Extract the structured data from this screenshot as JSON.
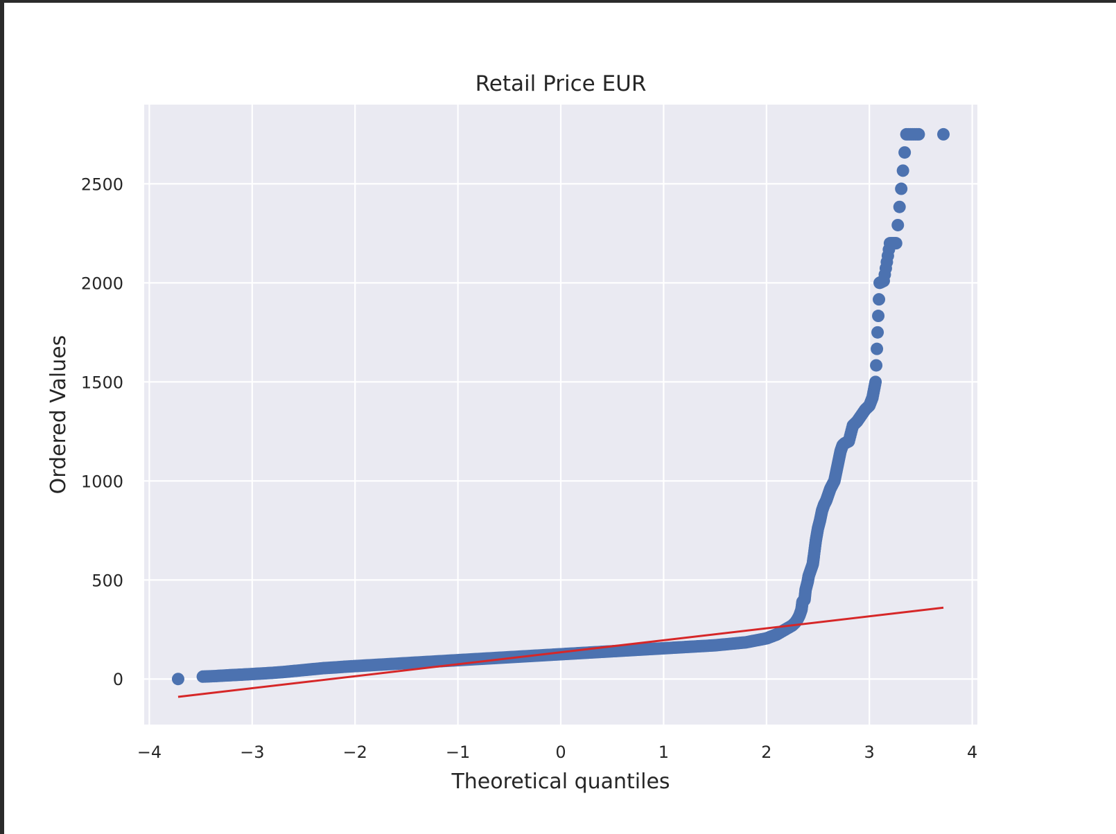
{
  "chart_data": {
    "type": "scatter",
    "title": "Retail Price EUR",
    "xlabel": "Theoretical quantiles",
    "ylabel": "Ordered Values",
    "xlim": [
      -4.05,
      4.05
    ],
    "ylim": [
      -230,
      2900
    ],
    "x_ticks": [
      -4,
      -3,
      -2,
      -1,
      0,
      1,
      2,
      3,
      4
    ],
    "x_tick_labels": [
      "−4",
      "−3",
      "−2",
      "−1",
      "0",
      "1",
      "2",
      "3",
      "4"
    ],
    "y_ticks": [
      0,
      500,
      1000,
      1500,
      2000,
      2500
    ],
    "y_tick_labels": [
      "0",
      "500",
      "1000",
      "1500",
      "2000",
      "2500"
    ],
    "grid": true,
    "legend": "none",
    "colors": {
      "points": "#4c72b0",
      "fit_line": "#d62728",
      "plot_background": "#eaeaf2",
      "grid": "#ffffff"
    },
    "series": [
      {
        "kind": "points",
        "x": [
          -3.72,
          -3.48,
          -3.35,
          -3.25,
          -3.18,
          -3.1,
          -3.0,
          -2.9,
          -2.8,
          -2.7,
          -2.6,
          -2.5,
          -2.4,
          -2.3,
          -2.2,
          -2.1,
          -2.0,
          -1.9,
          -1.8,
          -1.7,
          -1.6,
          -1.5,
          -1.4,
          -1.3,
          -1.2,
          -1.1,
          -1.0,
          -0.9,
          -0.8,
          -0.7,
          -0.6,
          -0.5,
          -0.4,
          -0.3,
          -0.2,
          -0.1,
          0.0,
          0.1,
          0.2,
          0.3,
          0.4,
          0.5,
          0.6,
          0.7,
          0.8,
          0.9,
          1.0,
          1.1,
          1.2,
          1.3,
          1.4,
          1.5,
          1.6,
          1.7,
          1.8,
          1.9,
          2.0,
          2.05,
          2.1,
          2.15,
          2.2,
          2.25,
          2.28,
          2.3,
          2.32,
          2.34,
          2.35,
          2.37,
          2.38,
          2.4,
          2.41,
          2.43,
          2.45,
          2.46,
          2.48,
          2.5,
          2.52,
          2.54,
          2.56,
          2.58,
          2.6,
          2.62,
          2.64,
          2.66,
          2.68,
          2.7,
          2.72,
          2.74,
          2.76,
          2.8,
          2.84,
          2.88,
          2.92,
          2.96,
          3.0,
          3.03,
          3.06,
          3.1,
          3.14,
          3.2,
          3.26,
          3.36,
          3.48,
          3.72
        ],
        "y": [
          0,
          12,
          15,
          18,
          20,
          22,
          25,
          28,
          31,
          35,
          40,
          45,
          50,
          55,
          58,
          62,
          65,
          68,
          71,
          74,
          77,
          80,
          83,
          86,
          89,
          92,
          95,
          98,
          101,
          104,
          107,
          110,
          113,
          116,
          119,
          122,
          125,
          128,
          131,
          134,
          137,
          140,
          143,
          146,
          149,
          152,
          155,
          158,
          161,
          164,
          167,
          170,
          175,
          180,
          185,
          195,
          205,
          215,
          225,
          240,
          255,
          270,
          285,
          300,
          320,
          350,
          390,
          400,
          450,
          490,
          520,
          550,
          580,
          620,
          700,
          760,
          800,
          850,
          880,
          900,
          930,
          960,
          980,
          1000,
          1050,
          1100,
          1150,
          1180,
          1190,
          1200,
          1280,
          1300,
          1330,
          1360,
          1380,
          1420,
          1500,
          2000,
          2010,
          2200,
          2200,
          2750,
          2750,
          2750
        ]
      },
      {
        "kind": "fit-line",
        "x": [
          -3.72,
          3.72
        ],
        "y": [
          -90,
          360
        ]
      }
    ]
  }
}
